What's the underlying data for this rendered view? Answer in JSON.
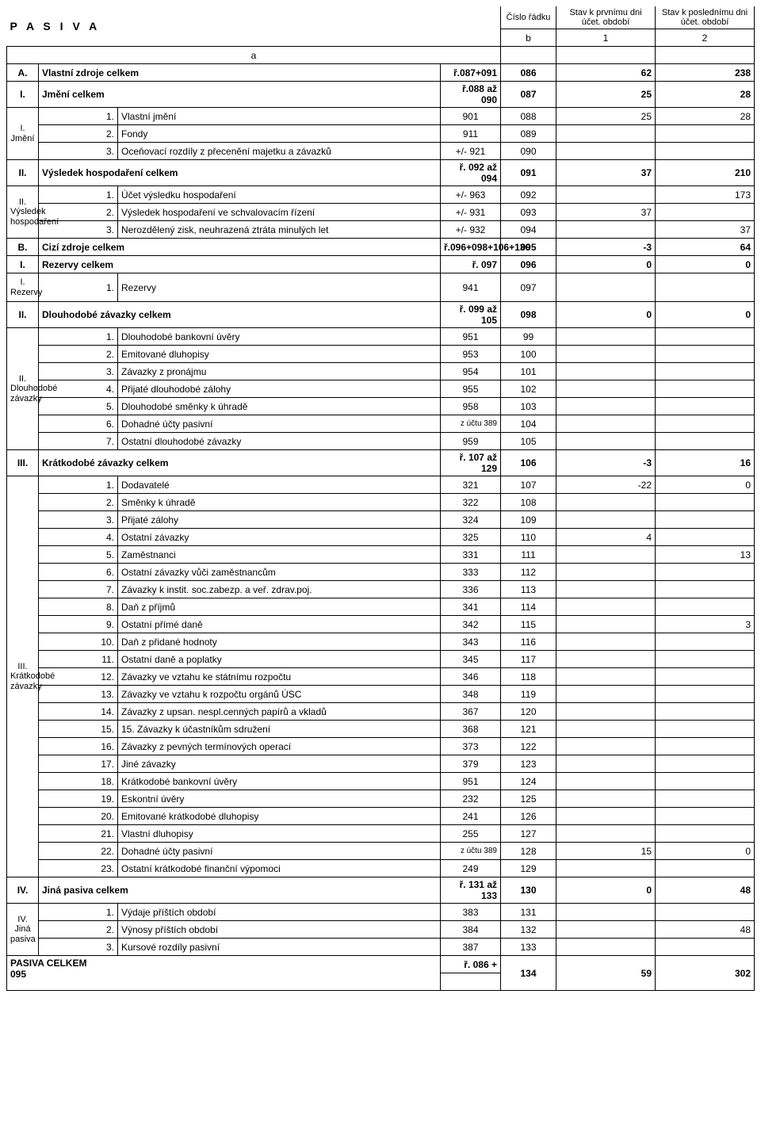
{
  "header": {
    "title": "P A S I V A",
    "col_cislo": "Číslo řádku",
    "col_stav1": "Stav k prvnímu dni účet. období",
    "col_stav2": "Stav k poslednímu dni účet. období",
    "a": "a",
    "b": "b",
    "c1": "1",
    "c2": "2"
  },
  "secA": {
    "letter": "A.",
    "label": "Vlastní zdroje celkem",
    "ref": "ř.087+091",
    "row": "086",
    "v1": "62",
    "v2": "238"
  },
  "secI_jmeni_hdr": {
    "letter": "I.",
    "label": "Jmění celkem",
    "ref": "ř.088 až 090",
    "row": "087",
    "v1": "25",
    "v2": "28"
  },
  "grp_jmeni": {
    "letter": "I.",
    "name": "Jmění"
  },
  "jmeni": [
    {
      "n": "1.",
      "t": "Vlastní jmění",
      "acct": "901",
      "row": "088",
      "v1": "25",
      "v2": "28"
    },
    {
      "n": "2.",
      "t": "Fondy",
      "acct": "911",
      "row": "089",
      "v1": "",
      "v2": ""
    },
    {
      "n": "3.",
      "t": "Oceňovací rozdíly z přecenění majetku a závazků",
      "acct": "+/- 921",
      "row": "090",
      "v1": "",
      "v2": ""
    }
  ],
  "secII_vysl_hdr": {
    "letter": "II.",
    "label": "Výsledek hospodaření celkem",
    "ref": "ř. 092 až 094",
    "row": "091",
    "v1": "37",
    "v2": "210"
  },
  "grp_vysl": {
    "letter": "II.",
    "name": "Výsledek hospodaření"
  },
  "vysl": [
    {
      "n": "1.",
      "t": "Účet výsledku hospodaření",
      "acct": "+/- 963",
      "row": "092",
      "v1": "",
      "v2": "173"
    },
    {
      "n": "2.",
      "t": "Výsledek hospodaření ve schvalovacím řízení",
      "acct": "+/- 931",
      "row": "093",
      "v1": "37",
      "v2": ""
    },
    {
      "n": "3.",
      "t": "Nerozdělený zisk, neuhrazená ztráta minulých let",
      "acct": "+/- 932",
      "row": "094",
      "v1": "",
      "v2": "37"
    }
  ],
  "secB": {
    "letter": "B.",
    "label": "Cizí  zdroje celkem",
    "ref": "ř.096+098+106+130",
    "row": "095",
    "v1": "-3",
    "v2": "64"
  },
  "secI_rez_hdr": {
    "letter": "I.",
    "label": "Rezervy celkem",
    "ref": "ř. 097",
    "row": "096",
    "v1": "0",
    "v2": "0"
  },
  "grp_rez": {
    "letter": "I.",
    "name": "Rezervy"
  },
  "rez": [
    {
      "n": "1.",
      "t": "Rezervy",
      "acct": "941",
      "row": "097",
      "v1": "",
      "v2": ""
    }
  ],
  "secII_dl_hdr": {
    "letter": "II.",
    "label": "Dlouhodobé závazky celkem",
    "ref": "ř. 099 až 105",
    "row": "098",
    "v1": "0",
    "v2": "0"
  },
  "grp_dl": {
    "letter": "II.",
    "name": "Dlouhodobé závazky"
  },
  "dl": [
    {
      "n": "1.",
      "t": "Dlouhodobé bankovní úvěry",
      "acct": "951",
      "row": "99",
      "v1": "",
      "v2": ""
    },
    {
      "n": "2.",
      "t": "Emitované dluhopisy",
      "acct": "953",
      "row": "100",
      "v1": "",
      "v2": ""
    },
    {
      "n": "3.",
      "t": "Závazky z pronájmu",
      "acct": "954",
      "row": "101",
      "v1": "",
      "v2": ""
    },
    {
      "n": "4.",
      "t": "Přijaté dlouhodobé zálohy",
      "acct": "955",
      "row": "102",
      "v1": "",
      "v2": ""
    },
    {
      "n": "5.",
      "t": "Dlouhodobé směnky k úhradě",
      "acct": "958",
      "row": "103",
      "v1": "",
      "v2": ""
    },
    {
      "n": "6.",
      "t": "Dohadné účty pasivní",
      "acct": "z účtu 389",
      "row": "104",
      "v1": "",
      "v2": ""
    },
    {
      "n": "7.",
      "t": "Ostatní dlouhodobé závazky",
      "acct": "959",
      "row": "105",
      "v1": "",
      "v2": ""
    }
  ],
  "secIII_kr_hdr": {
    "letter": "III.",
    "label": "Krátkodobé závazky celkem",
    "ref": "ř. 107 až 129",
    "row": "106",
    "v1": "-3",
    "v2": "16"
  },
  "grp_kr": {
    "letter": "III.",
    "name": "Krátkodobé závazky"
  },
  "kr": [
    {
      "n": "1.",
      "t": "Dodavatelé",
      "acct": "321",
      "row": "107",
      "v1": "-22",
      "v2": "0"
    },
    {
      "n": "2.",
      "t": "Směnky k úhradě",
      "acct": "322",
      "row": "108",
      "v1": "",
      "v2": ""
    },
    {
      "n": "3.",
      "t": "Přijaté zálohy",
      "acct": "324",
      "row": "109",
      "v1": "",
      "v2": ""
    },
    {
      "n": "4.",
      "t": "Ostatní závazky",
      "acct": "325",
      "row": "110",
      "v1": "4",
      "v2": ""
    },
    {
      "n": "5.",
      "t": "Zaměstnanci",
      "acct": "331",
      "row": "111",
      "v1": "",
      "v2": "13"
    },
    {
      "n": "6.",
      "t": "Ostatní závazky vůči zaměstnancům",
      "acct": "333",
      "row": "112",
      "v1": "",
      "v2": ""
    },
    {
      "n": "7.",
      "t": "Závazky k instit. soc.zabezp.  a veř. zdrav.poj.",
      "acct": "336",
      "row": "113",
      "v1": "",
      "v2": ""
    },
    {
      "n": "8.",
      "t": "Daň z příjmů",
      "acct": "341",
      "row": "114",
      "v1": "",
      "v2": ""
    },
    {
      "n": "9.",
      "t": "Ostatní přímé daně",
      "acct": "342",
      "row": "115",
      "v1": "",
      "v2": "3"
    },
    {
      "n": "10.",
      "t": "Daň z přidané hodnoty",
      "acct": "343",
      "row": "116",
      "v1": "",
      "v2": ""
    },
    {
      "n": "11.",
      "t": "Ostatní daně a poplatky",
      "acct": "345",
      "row": "117",
      "v1": "",
      "v2": ""
    },
    {
      "n": "12.",
      "t": "Závazky ve vztahu ke státnímu rozpočtu",
      "acct": "346",
      "row": "118",
      "v1": "",
      "v2": ""
    },
    {
      "n": "13.",
      "t": "Závazky ve vztahu k rozpočtu orgánů ÚSC",
      "acct": "348",
      "row": "119",
      "v1": "",
      "v2": ""
    },
    {
      "n": "14.",
      "t": "Závazky z upsan. nespl.cenných papírů a vkladů",
      "acct": "367",
      "row": "120",
      "v1": "",
      "v2": ""
    },
    {
      "n": "15.",
      "t": "15. Závazky k účastníkům sdružení",
      "acct": "368",
      "row": "121",
      "v1": "",
      "v2": ""
    },
    {
      "n": "16.",
      "t": "Závazky z pevných termínových operací",
      "acct": "373",
      "row": "122",
      "v1": "",
      "v2": ""
    },
    {
      "n": "17.",
      "t": "Jiné závazky",
      "acct": "379",
      "row": "123",
      "v1": "",
      "v2": ""
    },
    {
      "n": "18.",
      "t": "Krátkodobé bankovní úvěry",
      "acct": "951",
      "row": "124",
      "v1": "",
      "v2": ""
    },
    {
      "n": "19.",
      "t": "Eskontní úvěry",
      "acct": "232",
      "row": "125",
      "v1": "",
      "v2": ""
    },
    {
      "n": "20.",
      "t": "Emitované krátkodobé dluhopisy",
      "acct": "241",
      "row": "126",
      "v1": "",
      "v2": ""
    },
    {
      "n": "21.",
      "t": "Vlastní dluhopisy",
      "acct": "255",
      "row": "127",
      "v1": "",
      "v2": ""
    },
    {
      "n": "22.",
      "t": "Dohadné účty pasivní",
      "acct": "z účtu 389",
      "row": "128",
      "v1": "15",
      "v2": "0"
    },
    {
      "n": "23.",
      "t": "Ostatní krátkodobé finanční výpomoci",
      "acct": "249",
      "row": "129",
      "v1": "",
      "v2": ""
    }
  ],
  "secIV_jp_hdr": {
    "letter": "IV.",
    "label": "Jiná pasiva celkem",
    "ref": "ř. 131 až 133",
    "row": "130",
    "v1": "0",
    "v2": "48"
  },
  "grp_jp": {
    "letter": "IV.",
    "name": "Jiná pasiva"
  },
  "jp": [
    {
      "n": "1.",
      "t": "Výdaje příštích období",
      "acct": "383",
      "row": "131",
      "v1": "",
      "v2": ""
    },
    {
      "n": "2.",
      "t": "Výnosy příštích období",
      "acct": "384",
      "row": "132",
      "v1": "",
      "v2": "48"
    },
    {
      "n": "3.",
      "t": "Kursové rozdíly pasivní",
      "acct": "387",
      "row": "133",
      "v1": "",
      "v2": ""
    }
  ],
  "total": {
    "label": "PASIVA CELKEM",
    "ref": "ř. 086 +",
    "sub": "095",
    "row": "134",
    "v1": "59",
    "v2": "302"
  }
}
